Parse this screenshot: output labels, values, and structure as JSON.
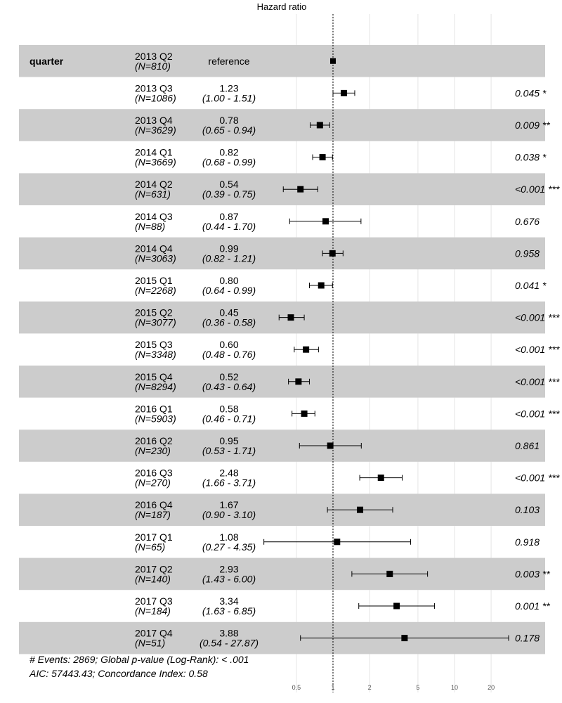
{
  "colors": {
    "band": "#cccccc",
    "background": "#ffffff",
    "mark": "#000000",
    "grid": "#e6e6e6"
  },
  "chart_data": {
    "type": "forest",
    "title": "Hazard ratio",
    "variable": "quarter",
    "scale": "log",
    "xlim": [
      0.35,
      30
    ],
    "x_ticks": [
      0.5,
      1,
      2,
      5,
      10,
      20
    ],
    "x_tick_labels": [
      "0.5",
      "1",
      "2",
      "5",
      "10",
      "20"
    ],
    "reference_line": 1,
    "reference_text": "reference",
    "rows": [
      {
        "level": "2013 Q2",
        "n_label": "(N=810)",
        "hr": 1.0,
        "reference": true
      },
      {
        "level": "2013 Q3",
        "n_label": "(N=1086)",
        "hr": 1.23,
        "lo": 1.0,
        "hi": 1.51,
        "hr_label": "1.23",
        "ci_label": "(1.00 -  1.51)",
        "p_label": "0.045 *"
      },
      {
        "level": "2013 Q4",
        "n_label": "(N=3629)",
        "hr": 0.78,
        "lo": 0.65,
        "hi": 0.94,
        "hr_label": "0.78",
        "ci_label": "(0.65 -  0.94)",
        "p_label": "0.009 **"
      },
      {
        "level": "2014 Q1",
        "n_label": "(N=3669)",
        "hr": 0.82,
        "lo": 0.68,
        "hi": 0.99,
        "hr_label": "0.82",
        "ci_label": "(0.68 -  0.99)",
        "p_label": "0.038 *"
      },
      {
        "level": "2014 Q2",
        "n_label": "(N=631)",
        "hr": 0.54,
        "lo": 0.39,
        "hi": 0.75,
        "hr_label": "0.54",
        "ci_label": "(0.39 -  0.75)",
        "p_label": "<0.001 ***"
      },
      {
        "level": "2014 Q3",
        "n_label": "(N=88)",
        "hr": 0.87,
        "lo": 0.44,
        "hi": 1.7,
        "hr_label": "0.87",
        "ci_label": "(0.44 -  1.70)",
        "p_label": "0.676"
      },
      {
        "level": "2014 Q4",
        "n_label": "(N=3063)",
        "hr": 0.99,
        "lo": 0.82,
        "hi": 1.21,
        "hr_label": "0.99",
        "ci_label": "(0.82 -  1.21)",
        "p_label": "0.958"
      },
      {
        "level": "2015 Q1",
        "n_label": "(N=2268)",
        "hr": 0.8,
        "lo": 0.64,
        "hi": 0.99,
        "hr_label": "0.80",
        "ci_label": "(0.64 -  0.99)",
        "p_label": "0.041 *"
      },
      {
        "level": "2015 Q2",
        "n_label": "(N=3077)",
        "hr": 0.45,
        "lo": 0.36,
        "hi": 0.58,
        "hr_label": "0.45",
        "ci_label": "(0.36 -  0.58)",
        "p_label": "<0.001 ***"
      },
      {
        "level": "2015 Q3",
        "n_label": "(N=3348)",
        "hr": 0.6,
        "lo": 0.48,
        "hi": 0.76,
        "hr_label": "0.60",
        "ci_label": "(0.48 -  0.76)",
        "p_label": "<0.001 ***"
      },
      {
        "level": "2015 Q4",
        "n_label": "(N=8294)",
        "hr": 0.52,
        "lo": 0.43,
        "hi": 0.64,
        "hr_label": "0.52",
        "ci_label": "(0.43 -  0.64)",
        "p_label": "<0.001 ***"
      },
      {
        "level": "2016 Q1",
        "n_label": "(N=5903)",
        "hr": 0.58,
        "lo": 0.46,
        "hi": 0.71,
        "hr_label": "0.58",
        "ci_label": "(0.46 -  0.71)",
        "p_label": "<0.001 ***"
      },
      {
        "level": "2016 Q2",
        "n_label": "(N=230)",
        "hr": 0.95,
        "lo": 0.53,
        "hi": 1.71,
        "hr_label": "0.95",
        "ci_label": "(0.53 -  1.71)",
        "p_label": "0.861"
      },
      {
        "level": "2016 Q3",
        "n_label": "(N=270)",
        "hr": 2.48,
        "lo": 1.66,
        "hi": 3.71,
        "hr_label": "2.48",
        "ci_label": "(1.66 -  3.71)",
        "p_label": "<0.001 ***"
      },
      {
        "level": "2016 Q4",
        "n_label": "(N=187)",
        "hr": 1.67,
        "lo": 0.9,
        "hi": 3.1,
        "hr_label": "1.67",
        "ci_label": "(0.90 -  3.10)",
        "p_label": "0.103"
      },
      {
        "level": "2017 Q1",
        "n_label": "(N=65)",
        "hr": 1.08,
        "lo": 0.27,
        "hi": 4.35,
        "hr_label": "1.08",
        "ci_label": "(0.27 -  4.35)",
        "p_label": "0.918"
      },
      {
        "level": "2017 Q2",
        "n_label": "(N=140)",
        "hr": 2.93,
        "lo": 1.43,
        "hi": 6.0,
        "hr_label": "2.93",
        "ci_label": "(1.43 -  6.00)",
        "p_label": "0.003 **"
      },
      {
        "level": "2017 Q3",
        "n_label": "(N=184)",
        "hr": 3.34,
        "lo": 1.63,
        "hi": 6.85,
        "hr_label": "3.34",
        "ci_label": "(1.63 -  6.85)",
        "p_label": "0.001 **"
      },
      {
        "level": "2017 Q4",
        "n_label": "(N=51)",
        "hr": 3.88,
        "lo": 0.54,
        "hi": 27.87,
        "hr_label": "3.88",
        "ci_label": "(0.54 - 27.87)",
        "p_label": "0.178"
      }
    ],
    "footer": [
      "# Events: 2869; Global p-value (Log-Rank): < .001",
      "AIC: 57443.43; Concordance Index: 0.58"
    ]
  }
}
